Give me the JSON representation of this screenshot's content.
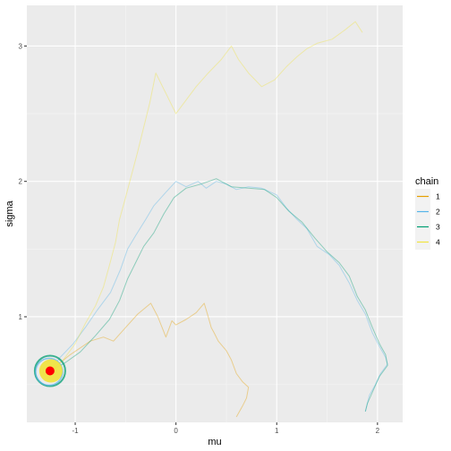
{
  "chart_data": {
    "type": "line",
    "xlabel": "mu",
    "ylabel": "sigma",
    "xlim": [
      -1.48,
      2.25
    ],
    "ylim": [
      0.22,
      3.3
    ],
    "x_ticks": [
      {
        "value": -1,
        "label": "-1"
      },
      {
        "value": 0,
        "label": "0"
      },
      {
        "value": 1,
        "label": "1"
      },
      {
        "value": 2,
        "label": "2"
      }
    ],
    "y_ticks": [
      {
        "value": 1,
        "label": "1"
      },
      {
        "value": 2,
        "label": "2"
      },
      {
        "value": 3,
        "label": "3"
      }
    ],
    "grid": true,
    "legend": {
      "title": "chain",
      "placement": "right",
      "entries": [
        {
          "label": "1",
          "color": "#E69F00"
        },
        {
          "label": "2",
          "color": "#56B4E9"
        },
        {
          "label": "3",
          "color": "#009E73"
        },
        {
          "label": "4",
          "color": "#F0E442"
        }
      ]
    },
    "series": [
      {
        "name": "1",
        "color": "#E69F00",
        "points": [
          [
            -1.25,
            0.6
          ],
          [
            -1.05,
            0.72
          ],
          [
            -0.85,
            0.82
          ],
          [
            -0.72,
            0.85
          ],
          [
            -0.62,
            0.82
          ],
          [
            -0.5,
            0.92
          ],
          [
            -0.38,
            1.02
          ],
          [
            -0.25,
            1.1
          ],
          [
            -0.18,
            1.0
          ],
          [
            -0.1,
            0.85
          ],
          [
            -0.04,
            0.97
          ],
          [
            0.0,
            0.94
          ],
          [
            0.1,
            0.98
          ],
          [
            0.2,
            1.03
          ],
          [
            0.28,
            1.1
          ],
          [
            0.32,
            1.0
          ],
          [
            0.35,
            0.92
          ],
          [
            0.38,
            0.88
          ],
          [
            0.42,
            0.82
          ],
          [
            0.5,
            0.75
          ],
          [
            0.55,
            0.68
          ],
          [
            0.6,
            0.58
          ],
          [
            0.66,
            0.52
          ],
          [
            0.72,
            0.48
          ],
          [
            0.7,
            0.4
          ],
          [
            0.66,
            0.34
          ],
          [
            0.6,
            0.26
          ]
        ]
      },
      {
        "name": "2",
        "color": "#56B4E9",
        "points": [
          [
            -1.25,
            0.6
          ],
          [
            -1.15,
            0.7
          ],
          [
            -1.02,
            0.8
          ],
          [
            -0.9,
            0.92
          ],
          [
            -0.78,
            1.05
          ],
          [
            -0.65,
            1.18
          ],
          [
            -0.55,
            1.35
          ],
          [
            -0.48,
            1.5
          ],
          [
            -0.4,
            1.6
          ],
          [
            -0.3,
            1.72
          ],
          [
            -0.22,
            1.82
          ],
          [
            -0.1,
            1.92
          ],
          [
            0.0,
            2.0
          ],
          [
            0.1,
            1.96
          ],
          [
            0.22,
            2.0
          ],
          [
            0.3,
            1.95
          ],
          [
            0.4,
            2.0
          ],
          [
            0.5,
            1.98
          ],
          [
            0.6,
            1.94
          ],
          [
            0.72,
            1.96
          ],
          [
            0.85,
            1.95
          ],
          [
            1.0,
            1.9
          ],
          [
            1.1,
            1.8
          ],
          [
            1.2,
            1.72
          ],
          [
            1.3,
            1.65
          ],
          [
            1.4,
            1.52
          ],
          [
            1.52,
            1.46
          ],
          [
            1.62,
            1.38
          ],
          [
            1.72,
            1.25
          ],
          [
            1.8,
            1.12
          ],
          [
            1.88,
            1.02
          ],
          [
            1.95,
            0.88
          ],
          [
            2.02,
            0.78
          ],
          [
            2.08,
            0.7
          ],
          [
            2.1,
            0.65
          ],
          [
            2.03,
            0.58
          ],
          [
            1.98,
            0.5
          ],
          [
            1.92,
            0.42
          ],
          [
            1.88,
            0.3
          ]
        ]
      },
      {
        "name": "3",
        "color": "#009E73",
        "points": [
          [
            -1.25,
            0.6
          ],
          [
            -1.1,
            0.66
          ],
          [
            -0.95,
            0.74
          ],
          [
            -0.8,
            0.86
          ],
          [
            -0.66,
            0.98
          ],
          [
            -0.56,
            1.12
          ],
          [
            -0.48,
            1.28
          ],
          [
            -0.4,
            1.4
          ],
          [
            -0.32,
            1.52
          ],
          [
            -0.22,
            1.62
          ],
          [
            -0.12,
            1.76
          ],
          [
            -0.02,
            1.88
          ],
          [
            0.1,
            1.95
          ],
          [
            0.25,
            1.98
          ],
          [
            0.4,
            2.02
          ],
          [
            0.55,
            1.96
          ],
          [
            0.72,
            1.95
          ],
          [
            0.88,
            1.94
          ],
          [
            1.0,
            1.88
          ],
          [
            1.12,
            1.78
          ],
          [
            1.25,
            1.7
          ],
          [
            1.38,
            1.58
          ],
          [
            1.5,
            1.48
          ],
          [
            1.62,
            1.4
          ],
          [
            1.72,
            1.3
          ],
          [
            1.8,
            1.15
          ],
          [
            1.88,
            1.05
          ],
          [
            1.95,
            0.92
          ],
          [
            2.02,
            0.8
          ],
          [
            2.08,
            0.72
          ],
          [
            2.1,
            0.64
          ],
          [
            2.02,
            0.56
          ],
          [
            1.96,
            0.46
          ],
          [
            1.9,
            0.36
          ],
          [
            1.88,
            0.3
          ]
        ]
      },
      {
        "name": "4",
        "color": "#F0E442",
        "points": [
          [
            -1.25,
            0.6
          ],
          [
            -1.12,
            0.68
          ],
          [
            -1.0,
            0.8
          ],
          [
            -0.9,
            0.95
          ],
          [
            -0.8,
            1.08
          ],
          [
            -0.72,
            1.22
          ],
          [
            -0.66,
            1.38
          ],
          [
            -0.6,
            1.55
          ],
          [
            -0.56,
            1.72
          ],
          [
            -0.5,
            1.88
          ],
          [
            -0.44,
            2.05
          ],
          [
            -0.38,
            2.22
          ],
          [
            -0.32,
            2.4
          ],
          [
            -0.26,
            2.58
          ],
          [
            -0.2,
            2.8
          ],
          [
            -0.1,
            2.65
          ],
          [
            0.0,
            2.5
          ],
          [
            0.1,
            2.6
          ],
          [
            0.2,
            2.7
          ],
          [
            0.32,
            2.8
          ],
          [
            0.45,
            2.9
          ],
          [
            0.55,
            3.0
          ],
          [
            0.62,
            2.9
          ],
          [
            0.72,
            2.8
          ],
          [
            0.85,
            2.7
          ],
          [
            0.98,
            2.75
          ],
          [
            1.1,
            2.85
          ],
          [
            1.2,
            2.92
          ],
          [
            1.3,
            2.98
          ],
          [
            1.4,
            3.02
          ],
          [
            1.55,
            3.05
          ],
          [
            1.68,
            3.12
          ],
          [
            1.78,
            3.18
          ],
          [
            1.85,
            3.1
          ]
        ]
      }
    ],
    "cluster_point": {
      "x": -1.25,
      "y": 0.6
    }
  }
}
